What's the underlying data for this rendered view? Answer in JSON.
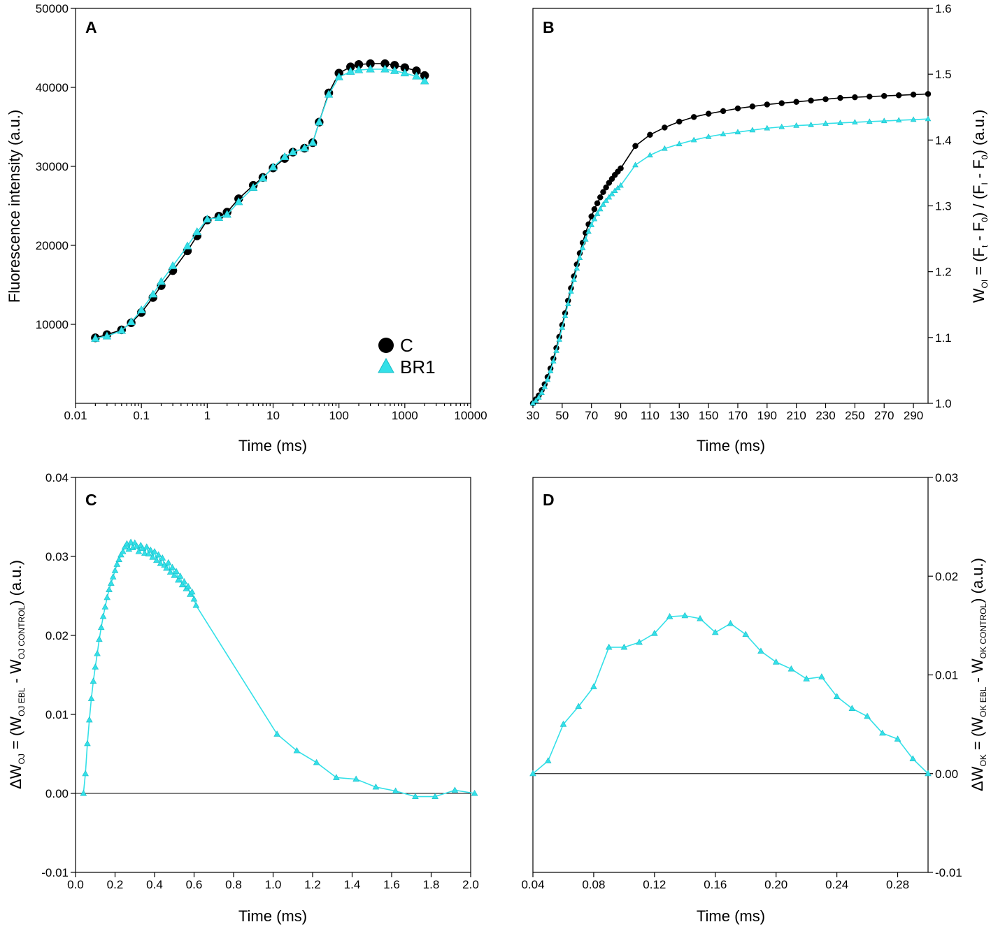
{
  "colors": {
    "control": "#000000",
    "treated": "#33e0e8",
    "treated_stroke": "#18bcc6"
  },
  "chart_data": [
    {
      "panel": "A",
      "type": "scatter",
      "xscale": "log",
      "xlim": [
        0.01,
        10000
      ],
      "ylim": [
        0,
        50000
      ],
      "xlabel": "Time (ms)",
      "ylabel": "Fluorescence intensity (a.u.)",
      "xticks": [
        0.01,
        0.1,
        1,
        10,
        100,
        1000,
        10000
      ],
      "xtick_labels": [
        "0.01",
        "0.1",
        "1",
        "10",
        "100",
        "1000",
        "10000"
      ],
      "yticks": [
        10000,
        20000,
        30000,
        40000,
        50000
      ],
      "ytick_labels": [
        "10000",
        "20000",
        "30000",
        "40000",
        "50000"
      ],
      "legend": [
        "C",
        "BR1"
      ],
      "series": [
        {
          "name": "C",
          "marker": "circle",
          "x": [
            0.02,
            0.03,
            0.05,
            0.07,
            0.1,
            0.15,
            0.2,
            0.3,
            0.5,
            0.7,
            1,
            1.5,
            2,
            3,
            5,
            7,
            10,
            15,
            20,
            30,
            40,
            50,
            70,
            100,
            150,
            200,
            300,
            500,
            700,
            1000,
            1500,
            2000
          ],
          "y": [
            8300,
            8700,
            9300,
            10200,
            11500,
            13400,
            14900,
            16800,
            19300,
            21200,
            23200,
            23700,
            24200,
            25900,
            27600,
            28600,
            29800,
            31000,
            31800,
            32300,
            33000,
            35600,
            39300,
            41800,
            42600,
            42900,
            43000,
            43000,
            42800,
            42500,
            42100,
            41500
          ]
        },
        {
          "name": "BR1",
          "marker": "triangle",
          "x": [
            0.02,
            0.03,
            0.05,
            0.07,
            0.1,
            0.15,
            0.2,
            0.3,
            0.5,
            0.7,
            1,
            1.5,
            2,
            3,
            5,
            7,
            10,
            15,
            20,
            30,
            40,
            50,
            70,
            100,
            150,
            200,
            300,
            500,
            700,
            1000,
            1500,
            2000
          ],
          "y": [
            8200,
            8500,
            9200,
            10300,
            11800,
            13800,
            15400,
            17400,
            19900,
            21700,
            23300,
            23500,
            23900,
            25500,
            27300,
            28500,
            29900,
            31200,
            31800,
            32300,
            33000,
            35600,
            39100,
            41300,
            42000,
            42200,
            42300,
            42300,
            42100,
            41800,
            41400,
            40800
          ]
        }
      ]
    },
    {
      "panel": "B",
      "type": "line",
      "xlim": [
        30,
        300
      ],
      "ylim": [
        1.0,
        1.6
      ],
      "xlabel": "Time (ms)",
      "ylabel": "WOI = (Ft - F0) / (FI - F0) (a.u.)",
      "ylabel_parts": [
        "W",
        "OI",
        " = (F",
        "t",
        " - F",
        "0",
        ") / (F",
        "I",
        " - F",
        "0",
        ") (a.u.)"
      ],
      "yaxis_side": "right",
      "xticks": [
        30,
        50,
        70,
        90,
        110,
        130,
        150,
        170,
        190,
        210,
        230,
        250,
        270,
        290
      ],
      "xtick_labels": [
        "30",
        "50",
        "70",
        "90",
        "110",
        "130",
        "150",
        "170",
        "190",
        "210",
        "230",
        "250",
        "270",
        "290"
      ],
      "yticks": [
        1.0,
        1.1,
        1.2,
        1.3,
        1.4,
        1.5,
        1.6
      ],
      "ytick_labels": [
        "1.0",
        "1.1",
        "1.2",
        "1.3",
        "1.4",
        "1.5",
        "1.6"
      ],
      "series": [
        {
          "name": "C",
          "marker": "circle",
          "x": [
            30,
            32,
            34,
            36,
            38,
            40,
            42,
            44,
            46,
            48,
            50,
            52,
            54,
            56,
            58,
            60,
            62,
            64,
            66,
            68,
            70,
            72,
            74,
            76,
            78,
            80,
            82,
            84,
            86,
            88,
            90,
            100,
            110,
            120,
            130,
            140,
            150,
            160,
            170,
            180,
            190,
            200,
            210,
            220,
            230,
            240,
            250,
            260,
            270,
            280,
            290,
            300
          ],
          "y": [
            1.0,
            1.006,
            1.012,
            1.02,
            1.029,
            1.04,
            1.053,
            1.068,
            1.084,
            1.101,
            1.119,
            1.137,
            1.156,
            1.175,
            1.193,
            1.211,
            1.228,
            1.244,
            1.259,
            1.272,
            1.284,
            1.295,
            1.304,
            1.313,
            1.321,
            1.328,
            1.335,
            1.341,
            1.347,
            1.352,
            1.357,
            1.391,
            1.408,
            1.419,
            1.428,
            1.435,
            1.44,
            1.444,
            1.448,
            1.451,
            1.454,
            1.456,
            1.458,
            1.46,
            1.462,
            1.464,
            1.465,
            1.466,
            1.467,
            1.468,
            1.469,
            1.47
          ]
        },
        {
          "name": "BR1",
          "marker": "triangle",
          "x": [
            30,
            32,
            34,
            36,
            38,
            40,
            42,
            44,
            46,
            48,
            50,
            52,
            54,
            56,
            58,
            60,
            62,
            64,
            66,
            68,
            70,
            72,
            74,
            76,
            78,
            80,
            82,
            84,
            86,
            88,
            90,
            100,
            110,
            120,
            130,
            140,
            150,
            160,
            170,
            180,
            190,
            200,
            210,
            220,
            230,
            240,
            250,
            260,
            270,
            280,
            290,
            300
          ],
          "y": [
            1.0,
            1.004,
            1.009,
            1.016,
            1.025,
            1.036,
            1.049,
            1.064,
            1.08,
            1.097,
            1.115,
            1.133,
            1.151,
            1.17,
            1.188,
            1.205,
            1.221,
            1.236,
            1.249,
            1.261,
            1.271,
            1.28,
            1.288,
            1.295,
            1.302,
            1.308,
            1.313,
            1.318,
            1.323,
            1.327,
            1.331,
            1.362,
            1.377,
            1.387,
            1.394,
            1.4,
            1.405,
            1.409,
            1.412,
            1.415,
            1.418,
            1.42,
            1.422,
            1.423,
            1.425,
            1.426,
            1.427,
            1.428,
            1.429,
            1.43,
            1.431,
            1.432
          ]
        }
      ]
    },
    {
      "panel": "C",
      "type": "line",
      "xlim": [
        0.0,
        2.0
      ],
      "ylim": [
        -0.01,
        0.04
      ],
      "xlabel": "Time (ms)",
      "ylabel": "ΔWOJ = (WOJ EBL - WOJ CONTROL) (a.u.)",
      "ylabel_parts": [
        "ΔW",
        "OJ",
        " = (W",
        "OJ EBL",
        " - W",
        "OJ CONTROL",
        ") (a.u.)"
      ],
      "xticks": [
        0.0,
        0.2,
        0.4,
        0.6,
        0.8,
        1.0,
        1.2,
        1.4,
        1.6,
        1.8,
        2.0
      ],
      "xtick_labels": [
        "0.0",
        "0.2",
        "0.4",
        "0.6",
        "0.8",
        "1.0",
        "1.2",
        "1.4",
        "1.6",
        "1.8",
        "2.0"
      ],
      "yticks": [
        -0.01,
        0.0,
        0.01,
        0.02,
        0.03,
        0.04
      ],
      "ytick_labels": [
        "-0.01",
        "0.00",
        "0.01",
        "0.02",
        "0.03",
        "0.04"
      ],
      "reference_line": 0.0,
      "series": [
        {
          "name": "ΔWOJ",
          "marker": "triangle",
          "x": [
            0.04,
            0.05,
            0.06,
            0.07,
            0.08,
            0.09,
            0.1,
            0.11,
            0.12,
            0.13,
            0.14,
            0.15,
            0.16,
            0.17,
            0.18,
            0.19,
            0.2,
            0.21,
            0.22,
            0.23,
            0.24,
            0.25,
            0.26,
            0.27,
            0.28,
            0.29,
            0.3,
            0.31,
            0.32,
            0.33,
            0.34,
            0.35,
            0.36,
            0.37,
            0.38,
            0.39,
            0.4,
            0.41,
            0.42,
            0.43,
            0.44,
            0.45,
            0.46,
            0.47,
            0.48,
            0.49,
            0.5,
            0.51,
            0.52,
            0.53,
            0.54,
            0.55,
            0.56,
            0.57,
            0.58,
            0.59,
            0.6,
            0.61,
            1.02,
            1.12,
            1.22,
            1.32,
            1.42,
            1.52,
            1.62,
            1.72,
            1.82,
            1.92,
            2.02
          ],
          "y": [
            0.0,
            0.0025,
            0.0063,
            0.0093,
            0.012,
            0.0142,
            0.016,
            0.0177,
            0.0195,
            0.021,
            0.0224,
            0.0236,
            0.0248,
            0.0258,
            0.0266,
            0.0274,
            0.0282,
            0.029,
            0.0296,
            0.0302,
            0.0306,
            0.0312,
            0.0316,
            0.0309,
            0.0318,
            0.0311,
            0.0317,
            0.0313,
            0.0306,
            0.0314,
            0.031,
            0.0304,
            0.0312,
            0.0303,
            0.0308,
            0.0299,
            0.0306,
            0.0295,
            0.0302,
            0.0291,
            0.0298,
            0.0289,
            0.0285,
            0.0292,
            0.028,
            0.0286,
            0.0276,
            0.0281,
            0.027,
            0.0275,
            0.0264,
            0.0268,
            0.0259,
            0.0262,
            0.0252,
            0.0255,
            0.0246,
            0.0238,
            0.0075,
            0.0054,
            0.0039,
            0.002,
            0.0018,
            0.0008,
            0.0003,
            -0.0004,
            -0.0004,
            0.0004,
            0.0
          ]
        }
      ]
    },
    {
      "panel": "D",
      "type": "line",
      "xlim": [
        0.04,
        0.3
      ],
      "ylim": [
        -0.01,
        0.03
      ],
      "xlabel": "Time (ms)",
      "ylabel": "ΔWOK = (WOK EBL - WOK CONTROL) (a.u.)",
      "ylabel_parts": [
        "ΔW",
        "OK",
        " = (W",
        "OK EBL",
        " - W",
        "OK CONTROL",
        ") (a.u.)"
      ],
      "yaxis_side": "right",
      "xticks": [
        0.04,
        0.08,
        0.12,
        0.16,
        0.2,
        0.24,
        0.28
      ],
      "xtick_labels": [
        "0.04",
        "0.08",
        "0.12",
        "0.16",
        "0.20",
        "0.24",
        "0.28"
      ],
      "yticks": [
        -0.01,
        0.0,
        0.01,
        0.02,
        0.03
      ],
      "ytick_labels": [
        "-0.01",
        "0.00",
        "0.01",
        "0.02",
        "0.03"
      ],
      "reference_line": 0.0,
      "series": [
        {
          "name": "ΔWOK",
          "marker": "triangle",
          "x": [
            0.04,
            0.05,
            0.06,
            0.07,
            0.08,
            0.09,
            0.1,
            0.11,
            0.12,
            0.13,
            0.14,
            0.15,
            0.16,
            0.17,
            0.18,
            0.19,
            0.2,
            0.21,
            0.22,
            0.23,
            0.24,
            0.25,
            0.26,
            0.27,
            0.28,
            0.29,
            0.3
          ],
          "y": [
            0.0,
            0.0013,
            0.005,
            0.0068,
            0.0088,
            0.0128,
            0.0128,
            0.0133,
            0.0142,
            0.0159,
            0.016,
            0.0157,
            0.0143,
            0.0152,
            0.0141,
            0.0124,
            0.0113,
            0.0106,
            0.0096,
            0.0098,
            0.0078,
            0.0066,
            0.0058,
            0.0041,
            0.0035,
            0.0015,
            0.0
          ]
        }
      ]
    }
  ]
}
